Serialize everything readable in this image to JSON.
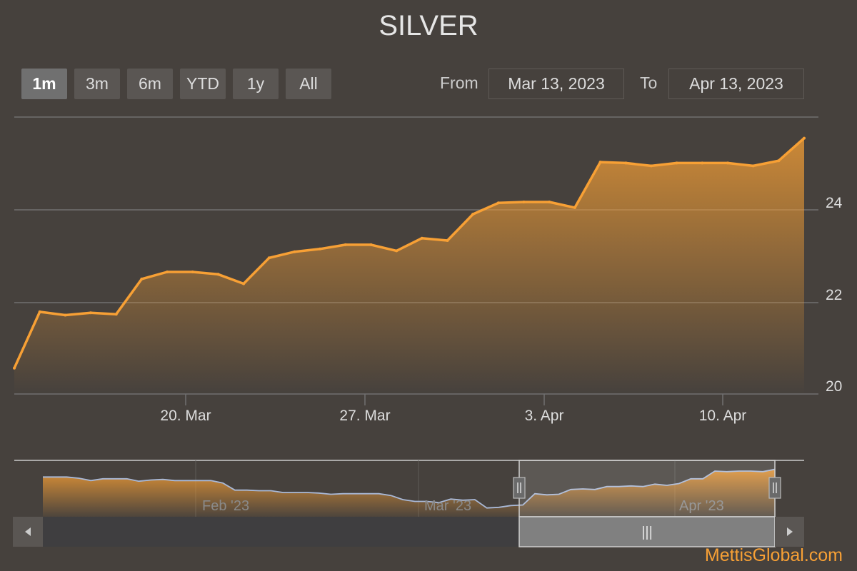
{
  "chart_data": {
    "type": "area",
    "title": "SILVER",
    "range_selector": {
      "buttons": [
        "1m",
        "3m",
        "6m",
        "YTD",
        "1y",
        "All"
      ],
      "selected": "1m",
      "from_label": "From",
      "from_value": "Mar 13, 2023",
      "to_label": "To",
      "to_value": "Apr 13, 2023"
    },
    "x_ticks": [
      "20. Mar",
      "27. Mar",
      "3. Apr",
      "10. Apr"
    ],
    "y_ticks": [
      "20",
      "22",
      "24"
    ],
    "ylim": [
      20,
      25.9
    ],
    "x": [
      "2023-03-13",
      "2023-03-14",
      "2023-03-15",
      "2023-03-16",
      "2023-03-17",
      "2023-03-18",
      "2023-03-19",
      "2023-03-20",
      "2023-03-21",
      "2023-03-22",
      "2023-03-23",
      "2023-03-24",
      "2023-03-25",
      "2023-03-26",
      "2023-03-27",
      "2023-03-28",
      "2023-03-29",
      "2023-03-30",
      "2023-03-31",
      "2023-04-01",
      "2023-04-02",
      "2023-04-03",
      "2023-04-04",
      "2023-04-05",
      "2023-04-06",
      "2023-04-07",
      "2023-04-08",
      "2023-04-09",
      "2023-04-10",
      "2023-04-11",
      "2023-04-12",
      "2023-04-13"
    ],
    "values": [
      20.55,
      21.75,
      21.68,
      21.73,
      21.7,
      22.45,
      22.6,
      22.6,
      22.55,
      22.35,
      22.9,
      23.03,
      23.09,
      23.18,
      23.18,
      23.05,
      23.32,
      23.27,
      23.83,
      24.07,
      24.09,
      24.09,
      23.97,
      24.94,
      24.92,
      24.86,
      24.92,
      24.92,
      24.92,
      24.86,
      24.97,
      25.45
    ],
    "series": [
      {
        "name": "SILVER",
        "color": "#f7a035"
      }
    ],
    "navigator": {
      "labels": [
        "Feb '23",
        "Mar '23",
        "Apr '23"
      ],
      "line_color": "#a9b9d8",
      "values": [
        24.1,
        24.1,
        24.1,
        24.0,
        23.8,
        23.95,
        23.95,
        23.95,
        23.75,
        23.85,
        23.9,
        23.8,
        23.8,
        23.8,
        23.8,
        23.6,
        23.0,
        23.0,
        22.95,
        22.95,
        22.8,
        22.8,
        22.8,
        22.75,
        22.65,
        22.7,
        22.7,
        22.7,
        22.7,
        22.55,
        22.2,
        22.05,
        22.05,
        21.95,
        22.25,
        22.15,
        22.2,
        21.5,
        21.55,
        21.7,
        21.75,
        22.7,
        22.6,
        22.65,
        23.05,
        23.1,
        23.05,
        23.3,
        23.3,
        23.35,
        23.3,
        23.5,
        23.4,
        23.55,
        23.95,
        23.95,
        24.6,
        24.55,
        24.6,
        24.6,
        24.55,
        24.75
      ]
    },
    "scroll": {
      "left_arrow": "left-arrow",
      "right_arrow": "right-arrow",
      "grip": "|||"
    }
  },
  "watermark": "MettisGlobal.com"
}
